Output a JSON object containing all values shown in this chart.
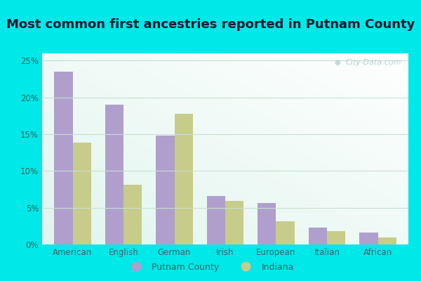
{
  "title": "Most common first ancestries reported in Putnam County",
  "categories": [
    "American",
    "English",
    "German",
    "Irish",
    "European",
    "Italian",
    "African"
  ],
  "putnam_values": [
    23.5,
    19.0,
    14.8,
    6.6,
    5.6,
    2.3,
    1.6
  ],
  "indiana_values": [
    13.9,
    8.1,
    17.8,
    5.9,
    3.2,
    1.8,
    1.0
  ],
  "putnam_color": "#b09fcc",
  "indiana_color": "#c8cc8a",
  "background_outer": "#00e8e8",
  "background_inner_topleft": "#e0f5ee",
  "background_inner_bottomright": "#f8fffc",
  "ylim": [
    0,
    26
  ],
  "yticks": [
    0,
    5,
    10,
    15,
    20,
    25
  ],
  "ytick_labels": [
    "0%",
    "5%",
    "10%",
    "15%",
    "20%",
    "25%"
  ],
  "title_fontsize": 13,
  "title_color": "#1a1a2e",
  "watermark": "City-Data.com",
  "legend_putnam": "Putnam County",
  "legend_indiana": "Indiana",
  "bar_width": 0.36,
  "grid_color": "#c8dfd0",
  "tick_color": "#336666",
  "axis_label_color": "#336666"
}
